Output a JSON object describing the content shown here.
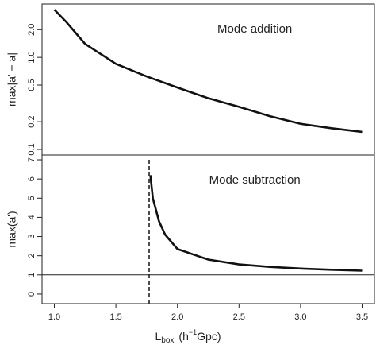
{
  "chart_data": [
    {
      "type": "line",
      "log_y": true,
      "annotation": "Mode addition",
      "ylabel": "max|a' − a|",
      "x": [
        1.0,
        1.1,
        1.25,
        1.5,
        1.75,
        2.0,
        2.25,
        2.5,
        2.75,
        3.0,
        3.25,
        3.5
      ],
      "series": [
        {
          "color": "#111111",
          "values": [
            3.3,
            2.4,
            1.4,
            0.85,
            0.62,
            0.47,
            0.36,
            0.29,
            0.23,
            0.19,
            0.17,
            0.155
          ]
        }
      ],
      "xlim": [
        0.9,
        3.6
      ],
      "ylim": [
        0.087,
        3.8
      ],
      "yticks": [
        0.1,
        0.2,
        0.5,
        {
          "value": 1,
          "label": "1.0"
        },
        {
          "value": 2,
          "label": "2.0"
        }
      ]
    },
    {
      "type": "line",
      "annotation": "Mode subtraction",
      "ylabel": "max(a')",
      "x": [
        1.78,
        1.8,
        1.85,
        1.9,
        2.0,
        2.25,
        2.5,
        2.75,
        3.0,
        3.25,
        3.5
      ],
      "series": [
        {
          "color": "#111111",
          "values": [
            6.2,
            5.0,
            3.8,
            3.1,
            2.35,
            1.8,
            1.55,
            1.42,
            1.33,
            1.27,
            1.22
          ]
        }
      ],
      "hline": 1,
      "vline": 1.77,
      "xlim": [
        0.9,
        3.6
      ],
      "ylim": [
        -0.5,
        7.25
      ],
      "yticks": [
        0,
        1,
        2,
        3,
        4,
        5,
        6,
        7
      ],
      "xticks": [
        {
          "value": 1,
          "label": "1.0"
        },
        1.5,
        {
          "value": 2,
          "label": "2.0"
        },
        2.5,
        {
          "value": 3,
          "label": "3.0"
        },
        3.5
      ],
      "xlabel": {
        "main": "L",
        "sub": "box",
        "open": "(h",
        "sup": "−1",
        "close": "Gpc)"
      }
    }
  ]
}
